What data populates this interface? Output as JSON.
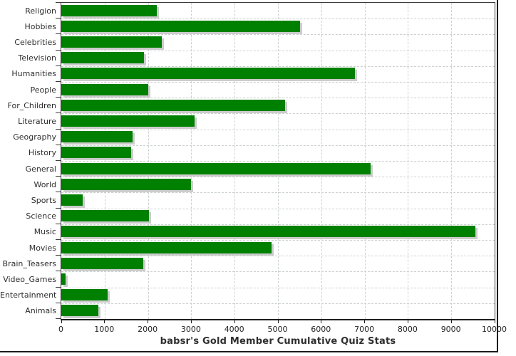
{
  "chart_data": {
    "type": "bar",
    "orientation": "horizontal",
    "title": "babsr's Gold Member Cumulative Quiz Stats",
    "categories": [
      "Religion",
      "Hobbies",
      "Celebrities",
      "Television",
      "Humanities",
      "People",
      "For_Children",
      "Literature",
      "Geography",
      "History",
      "General",
      "World",
      "Sports",
      "Science",
      "Music",
      "Movies",
      "Brain_Teasers",
      "Video_Games",
      "Entertainment",
      "Animals"
    ],
    "values": [
      2200,
      5510,
      2320,
      1900,
      6780,
      2000,
      5160,
      3080,
      1650,
      1610,
      7130,
      3000,
      490,
      2030,
      9550,
      4860,
      1890,
      100,
      1070,
      860
    ],
    "xlim": [
      0,
      10000
    ],
    "x_ticks": [
      0,
      1000,
      2000,
      3000,
      4000,
      5000,
      6000,
      7000,
      8000,
      9000,
      10000
    ],
    "xlabel": "",
    "ylabel": "",
    "grid": "dashed, both axes, light gray",
    "legend": "none",
    "colors": {
      "bar": "#008000",
      "bar_shadow": "#cccccc",
      "gridline": "#cdd1d1",
      "plot_border": "#3c3c3c",
      "axis_line": "#1f1f1f",
      "text": "#2e2e2e",
      "background": "#ffffff"
    }
  }
}
